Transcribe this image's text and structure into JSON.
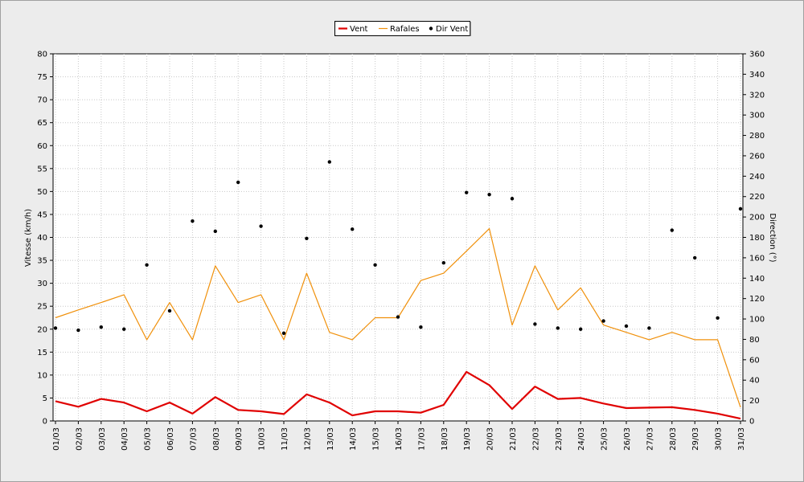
{
  "chart_data": {
    "type": "line",
    "categories": [
      "01/03",
      "02/03",
      "03/03",
      "04/03",
      "05/03",
      "06/03",
      "07/03",
      "08/03",
      "09/03",
      "10/03",
      "11/03",
      "12/03",
      "13/03",
      "14/03",
      "15/03",
      "16/03",
      "17/03",
      "18/03",
      "19/03",
      "20/03",
      "21/03",
      "22/03",
      "23/03",
      "24/03",
      "25/03",
      "26/03",
      "27/03",
      "28/03",
      "29/03",
      "30/03",
      "31/03"
    ],
    "y_left": {
      "label": "Vitesse (km/h)",
      "range": [
        0,
        80
      ],
      "step": 5
    },
    "y_right": {
      "label": "Direction (°)",
      "range": [
        0,
        360
      ],
      "step": 20
    },
    "grid": true,
    "legend": "top-center",
    "series": [
      {
        "name": "Vent",
        "axis": "left",
        "kind": "line",
        "color": "#e00000",
        "values": [
          4.3,
          3.1,
          4.8,
          4.0,
          2.1,
          4.0,
          1.6,
          5.2,
          2.4,
          2.1,
          1.5,
          5.8,
          4.0,
          1.2,
          2.1,
          2.1,
          1.8,
          3.5,
          10.7,
          7.8,
          2.6,
          7.5,
          4.8,
          5.0,
          3.8,
          2.8,
          2.9,
          3.0,
          2.4,
          1.6,
          0.5
        ]
      },
      {
        "name": "Rafales",
        "axis": "left",
        "kind": "line",
        "color": "#f0900a",
        "values": [
          22.5,
          24.2,
          25.8,
          27.5,
          17.7,
          25.8,
          17.7,
          33.8,
          25.8,
          27.5,
          17.7,
          32.2,
          19.3,
          17.7,
          22.5,
          22.5,
          30.6,
          32.2,
          37.0,
          41.9,
          20.9,
          33.8,
          24.2,
          29.0,
          20.9,
          19.3,
          17.7,
          19.3,
          17.7,
          17.7,
          3.0
        ]
      },
      {
        "name": "Dir Vent",
        "axis": "right",
        "kind": "scatter",
        "color": "#000000",
        "values": [
          91,
          89,
          92,
          90,
          153,
          108,
          196,
          186,
          234,
          191,
          86,
          179,
          254,
          188,
          153,
          102,
          92,
          155,
          224,
          222,
          218,
          95,
          91,
          90,
          98,
          93,
          91,
          187,
          160,
          101,
          208
        ]
      }
    ]
  }
}
